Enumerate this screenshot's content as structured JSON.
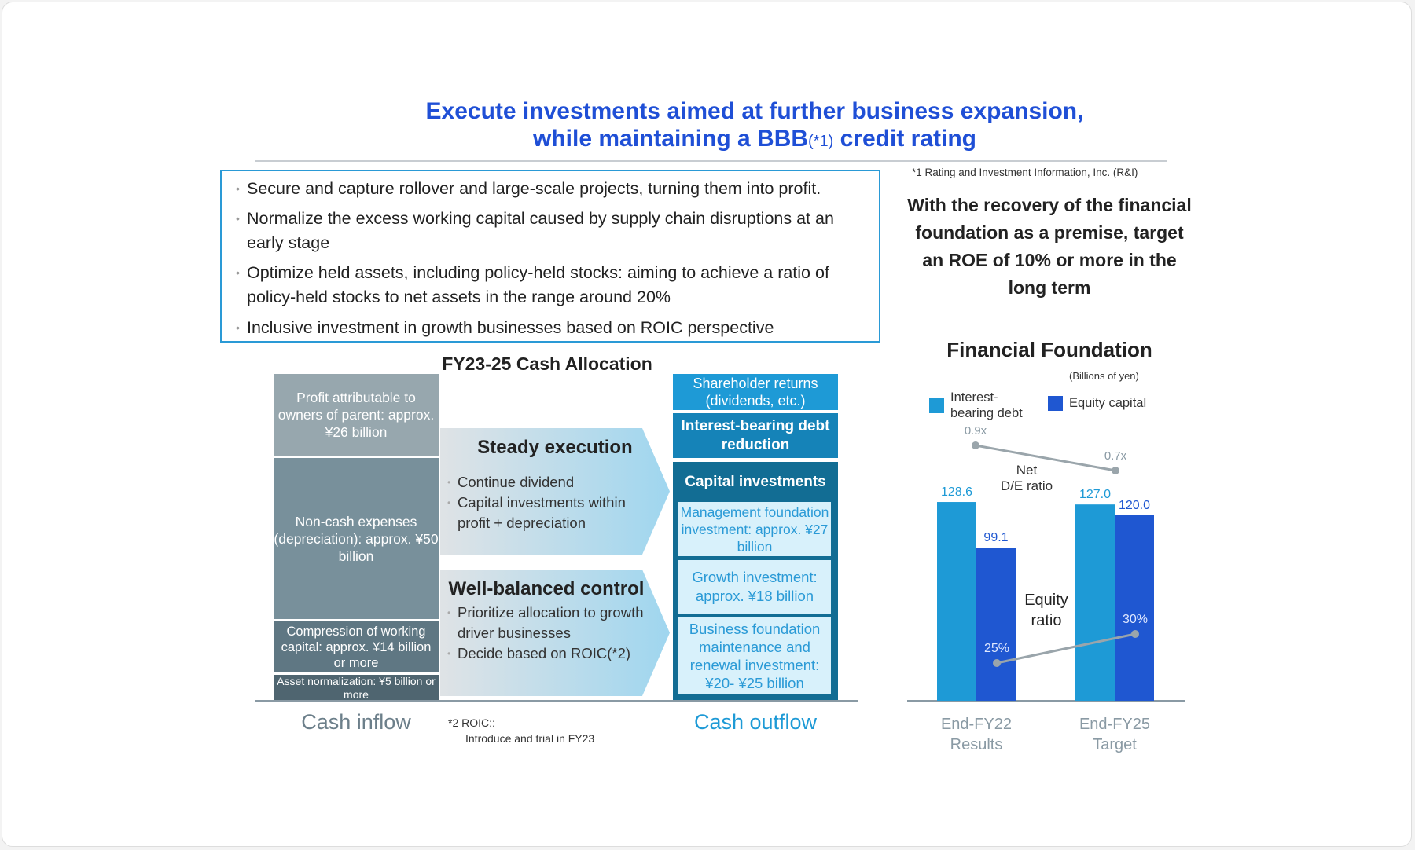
{
  "title": {
    "line1": "Execute investments aimed at further business expansion,",
    "line2_a": "while maintaining a BBB",
    "line2_sup": "(*1)",
    "line2_b": " credit rating"
  },
  "footnote1": "*1 Rating and Investment Information, Inc. (R&I)",
  "bullets": [
    "Secure and capture rollover and large-scale projects, turning them into profit.",
    "Normalize the excess working capital caused by supply chain disruptions at an early stage",
    "Optimize held assets, including policy-held stocks: aiming to achieve a ratio of policy-held stocks to net assets in the range around 20%",
    "Inclusive investment in growth businesses based on ROIC perspective"
  ],
  "roe_text": "With the recovery of the financial foundation as a premise, target an ROE of 10% or more in the long term",
  "cash_allocation": {
    "title": "FY23-25 Cash Allocation",
    "inflow": [
      "Profit attributable to owners of parent: approx. ¥26 billion",
      "Non-cash expenses (depreciation): approx. ¥50 billion",
      "Compression of working capital: approx. ¥14 billion or more",
      "Asset normalization: ¥5 billion or more"
    ],
    "steady": {
      "title": "Steady execution",
      "items": [
        "Continue dividend",
        "Capital investments within profit + depreciation"
      ]
    },
    "balanced": {
      "title": "Well-balanced control",
      "items": [
        "Prioritize allocation to growth driver businesses",
        "Decide based on ROIC(*2)"
      ]
    },
    "outflow": {
      "shareholder": "Shareholder returns (dividends, etc.)",
      "debt": "Interest-bearing debt reduction",
      "capex": "Capital investments",
      "items": [
        "Management foundation investment: approx. ¥27 billion",
        "Growth investment: approx. ¥18 billion",
        "Business foundation maintenance and renewal investment: ¥20- ¥25 billion"
      ]
    },
    "inflow_label": "Cash inflow",
    "outflow_label": "Cash outflow",
    "note2_a": "*2 ROIC::",
    "note2_b": "Introduce and trial in FY23",
    "colors": {
      "inflow": [
        "#97a7ae",
        "#78909b",
        "#5f7783",
        "#4f6570"
      ],
      "shareholder": "#1e9ad6",
      "debt": "#1583b8",
      "capex": "#126d94"
    }
  },
  "chart_data": {
    "type": "bar",
    "title": "Financial Foundation",
    "unit": "(Billions of yen)",
    "categories": [
      "End-FY22\nResults",
      "End-FY25\nTarget"
    ],
    "category_lines": [
      [
        "End-FY22",
        "Results"
      ],
      [
        "End-FY25",
        "Target"
      ]
    ],
    "series": [
      {
        "name": "Interest-bearing debt",
        "values": [
          128.6,
          127.0
        ],
        "labels": [
          "128.6",
          "127.0"
        ],
        "color": "#1e9ad6"
      },
      {
        "name": "Equity capital",
        "values": [
          99.1,
          120.0
        ],
        "labels": [
          "99.1",
          "120.0"
        ],
        "color": "#1f57d1"
      }
    ],
    "legend": {
      "debt_a": "Interest-",
      "debt_b": "bearing debt",
      "equity": "Equity capital",
      "placement": "top"
    },
    "net_de": {
      "label_a": "Net",
      "label_b": "D/E ratio",
      "values": [
        0.9,
        0.7
      ],
      "labels": [
        "0.9x",
        "0.7x"
      ]
    },
    "equity_ratio": {
      "label_a": "Equity",
      "label_b": "ratio",
      "values": [
        25,
        30
      ],
      "labels": [
        "25%",
        "30%"
      ]
    },
    "grid": false
  }
}
